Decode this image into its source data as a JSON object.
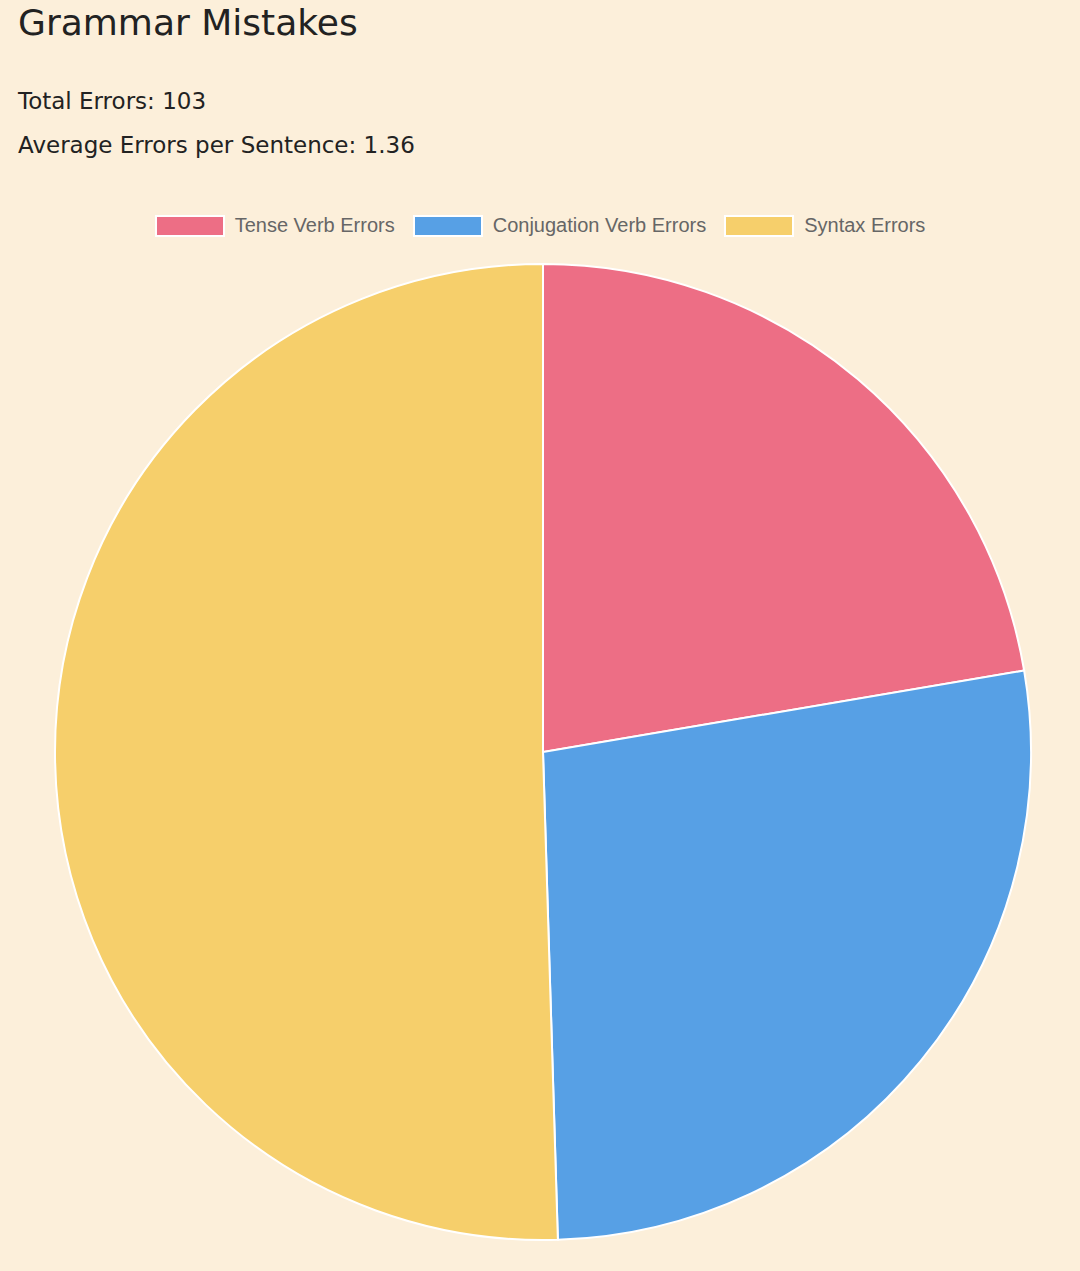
{
  "chart_data": {
    "type": "pie",
    "title": "Grammar Mistakes",
    "annotations": [
      "Total Errors: 103",
      "Average Errors per Sentence: 1.36"
    ],
    "categories": [
      "Tense Verb Errors",
      "Conjugation Verb Errors",
      "Syntax Errors"
    ],
    "values": [
      23,
      28,
      52
    ],
    "colors": [
      "#ed6e85",
      "#57a0e5",
      "#f6cf6b"
    ],
    "legend": "top"
  }
}
